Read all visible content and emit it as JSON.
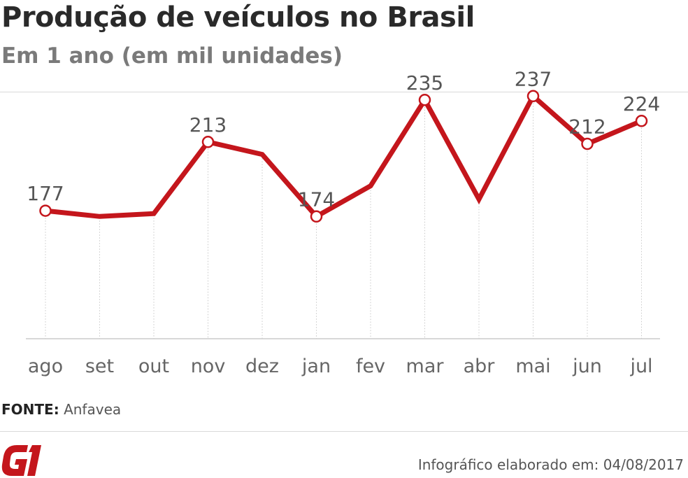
{
  "header": {
    "title": "Produção de veículos no Brasil",
    "subtitle": "Em 1 ano (em mil unidades)"
  },
  "chart_data": {
    "type": "line",
    "title": "Produção de veículos no Brasil",
    "subtitle": "Em 1 ano (em mil unidades)",
    "xlabel": "",
    "ylabel": "",
    "categories": [
      "ago",
      "set",
      "out",
      "nov",
      "dez",
      "jan",
      "fev",
      "mar",
      "abr",
      "mai",
      "jun",
      "jul"
    ],
    "series": [
      {
        "name": "Produção de veículos",
        "values": [
          177,
          174,
          175.5,
          213,
          206.5,
          174,
          190,
          235,
          183,
          237,
          212,
          224
        ]
      }
    ],
    "labeled_points": [
      {
        "category": "ago",
        "label": "177"
      },
      {
        "category": "nov",
        "label": "213"
      },
      {
        "category": "jan",
        "label": "174"
      },
      {
        "category": "mar",
        "label": "235"
      },
      {
        "category": "mai",
        "label": "237"
      },
      {
        "category": "jun",
        "label": "212"
      },
      {
        "category": "jul",
        "label": "224"
      }
    ],
    "ylim": [
      110,
      250
    ],
    "grid": "vertical dotted",
    "legend": "none",
    "line_color": "#c4161c"
  },
  "source": {
    "label": "FONTE:",
    "value": "Anfavea"
  },
  "brand": {
    "logo_text": "G1",
    "logo_color": "#c4161c"
  },
  "footer": {
    "note": "Infográfico elaborado em: 04/08/2017"
  }
}
